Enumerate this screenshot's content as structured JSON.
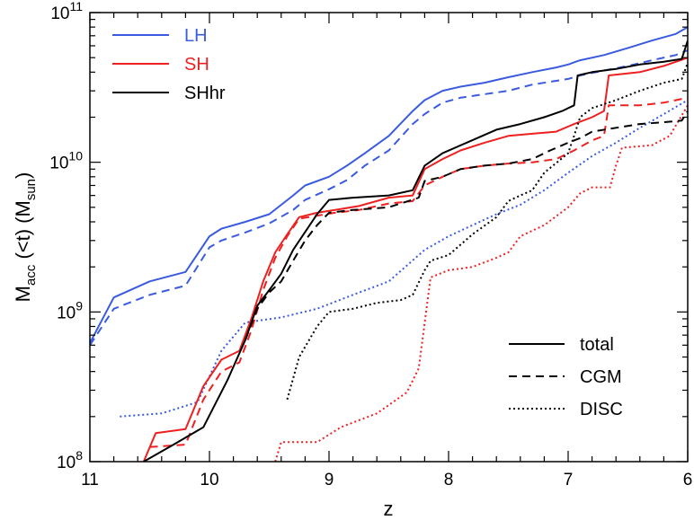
{
  "chart_data": {
    "type": "line",
    "xlabel": "z",
    "ylabel": {
      "main": "M",
      "sub1": "acc",
      "mid": " (<t) (M",
      "sub2": "sun",
      "end": ")"
    },
    "xlim": [
      11,
      6
    ],
    "ylim": [
      100000000,
      100000000000
    ],
    "yscale": "log",
    "x_ticks": [
      11,
      10,
      9,
      8,
      7,
      6
    ],
    "y_ticks": [
      {
        "base": "10",
        "exp": "8",
        "value": 100000000
      },
      {
        "base": "10",
        "exp": "9",
        "value": 1000000000
      },
      {
        "base": "10",
        "exp": "10",
        "value": 10000000000
      },
      {
        "base": "10",
        "exp": "11",
        "value": 100000000000
      }
    ],
    "colors": {
      "LH": "#3a5be0",
      "SH": "#ee2020",
      "SHhr": "#000000"
    },
    "legend_sims": [
      {
        "label": "LH",
        "color": "#3a5be0"
      },
      {
        "label": "SH",
        "color": "#ee2020"
      },
      {
        "label": "SHhr",
        "color": "#000000"
      }
    ],
    "legend_components": [
      {
        "label": "total",
        "style": "solid"
      },
      {
        "label": "CGM",
        "style": "dashed"
      },
      {
        "label": "DISC",
        "style": "dotted"
      }
    ],
    "series": [
      {
        "name": "LH total",
        "sim": "LH",
        "component": "total",
        "x": [
          11,
          10.8,
          10.5,
          10.2,
          10,
          9.9,
          9.7,
          9.5,
          9.3,
          9.2,
          9.0,
          8.85,
          8.7,
          8.5,
          8.3,
          8.2,
          8.05,
          7.9,
          7.7,
          7.5,
          7.3,
          7.1,
          7.0,
          6.9,
          6.7,
          6.5,
          6.3,
          6.1,
          6.0
        ],
        "y": [
          620000000.0,
          1250000000.0,
          1600000000.0,
          1850000000.0,
          3200000000.0,
          3600000000.0,
          4000000000.0,
          4500000000.0,
          6000000000.0,
          7000000000.0,
          8000000000.0,
          9500000000.0,
          11500000000.0,
          15000000000.0,
          22000000000.0,
          26000000000.0,
          30000000000.0,
          32000000000.0,
          34000000000.0,
          37000000000.0,
          40000000000.0,
          43000000000.0,
          45000000000.0,
          48000000000.0,
          52000000000.0,
          58000000000.0,
          65000000000.0,
          72000000000.0,
          80000000000.0
        ]
      },
      {
        "name": "LH CGM",
        "sim": "LH",
        "component": "CGM",
        "x": [
          11,
          10.8,
          10.5,
          10.2,
          10,
          9.9,
          9.7,
          9.5,
          9.3,
          9.2,
          9.0,
          8.85,
          8.7,
          8.5,
          8.3,
          8.2,
          8.05,
          7.9,
          7.7,
          7.5,
          7.3,
          7.1,
          7.0,
          6.9,
          6.7,
          6.5,
          6.3,
          6.1,
          6.0
        ],
        "y": [
          600000000.0,
          1050000000.0,
          1300000000.0,
          1500000000.0,
          2700000000.0,
          3000000000.0,
          3400000000.0,
          3900000000.0,
          4800000000.0,
          5600000000.0,
          6600000000.0,
          7600000000.0,
          9500000000.0,
          12000000000.0,
          18000000000.0,
          21000000000.0,
          25000000000.0,
          27000000000.0,
          28500000000.0,
          30000000000.0,
          33000000000.0,
          35000000000.0,
          36000000000.0,
          38000000000.0,
          41000000000.0,
          44000000000.0,
          48000000000.0,
          52000000000.0,
          56000000000.0
        ]
      },
      {
        "name": "LH DISC",
        "sim": "LH",
        "component": "DISC",
        "x": [
          10.75,
          10.4,
          10.1,
          9.9,
          9.7,
          9.4,
          9.1,
          8.8,
          8.5,
          8.2,
          8.0,
          7.8,
          7.6,
          7.4,
          7.2,
          7.0,
          6.8,
          6.6,
          6.4,
          6.2,
          6.0
        ],
        "y": [
          200000000.0,
          210000000.0,
          250000000.0,
          550000000.0,
          850000000.0,
          920000000.0,
          1050000000.0,
          1300000000.0,
          1600000000.0,
          2600000000.0,
          3200000000.0,
          3800000000.0,
          4500000000.0,
          5200000000.0,
          6500000000.0,
          8500000000.0,
          11000000000.0,
          13500000000.0,
          17000000000.0,
          21000000000.0,
          26000000000.0
        ]
      },
      {
        "name": "SH total",
        "sim": "SH",
        "component": "total",
        "x": [
          10.55,
          10.45,
          10.2,
          10.05,
          9.9,
          9.75,
          9.65,
          9.55,
          9.45,
          9.35,
          9.25,
          9.1,
          8.95,
          8.75,
          8.5,
          8.3,
          8.2,
          8.05,
          7.9,
          7.7,
          7.5,
          7.3,
          7.1,
          6.95,
          6.8,
          6.7,
          6.66,
          6.4,
          6.2,
          6.0
        ],
        "y": [
          100000000.0,
          155000000.0,
          165000000.0,
          320000000.0,
          480000000.0,
          550000000.0,
          900000000.0,
          1600000000.0,
          2500000000.0,
          3300000000.0,
          4300000000.0,
          4600000000.0,
          4800000000.0,
          5100000000.0,
          5800000000.0,
          6000000000.0,
          9000000000.0,
          10500000000.0,
          12000000000.0,
          13500000000.0,
          15000000000.0,
          15500000000.0,
          16000000000.0,
          18000000000.0,
          20000000000.0,
          22000000000.0,
          38000000000.0,
          40000000000.0,
          44000000000.0,
          50000000000.0
        ]
      },
      {
        "name": "SH CGM",
        "sim": "SH",
        "component": "CGM",
        "x": [
          10.5,
          10.2,
          10.05,
          9.9,
          9.75,
          9.65,
          9.55,
          9.45,
          9.35,
          9.25,
          9.1,
          8.95,
          8.75,
          8.5,
          8.3,
          8.2,
          8.05,
          7.9,
          7.7,
          7.5,
          7.3,
          7.1,
          6.95,
          6.8,
          6.7,
          6.66,
          6.4,
          6.2,
          6.0
        ],
        "y": [
          125000000.0,
          130000000.0,
          260000000.0,
          400000000.0,
          460000000.0,
          750000000.0,
          1400000000.0,
          2300000000.0,
          3200000000.0,
          4200000000.0,
          4400000000.0,
          4600000000.0,
          4800000000.0,
          5300000000.0,
          5500000000.0,
          7000000000.0,
          8000000000.0,
          9000000000.0,
          9500000000.0,
          9800000000.0,
          10000000000.0,
          10500000000.0,
          12000000000.0,
          14000000000.0,
          15000000000.0,
          24000000000.0,
          24000000000.0,
          25000000000.0,
          27000000000.0
        ]
      },
      {
        "name": "SH DISC",
        "sim": "SH",
        "component": "DISC",
        "x": [
          9.45,
          9.4,
          9.1,
          8.9,
          8.6,
          8.35,
          8.25,
          8.15,
          8.0,
          7.8,
          7.6,
          7.5,
          7.4,
          7.2,
          7.0,
          6.9,
          6.8,
          6.65,
          6.6,
          6.55,
          6.3,
          6.15,
          6.0
        ],
        "y": [
          100000000.0,
          135000000.0,
          135000000.0,
          170000000.0,
          210000000.0,
          290000000.0,
          420000000.0,
          1700000000.0,
          1900000000.0,
          2000000000.0,
          2300000000.0,
          2500000000.0,
          3200000000.0,
          3800000000.0,
          5000000000.0,
          6200000000.0,
          6800000000.0,
          6800000000.0,
          9500000000.0,
          12500000000.0,
          13000000000.0,
          15000000000.0,
          24000000000.0
        ]
      },
      {
        "name": "SHhr total",
        "sim": "SHhr",
        "component": "total",
        "x": [
          10.55,
          10.3,
          10.05,
          9.85,
          9.7,
          9.6,
          9.5,
          9.4,
          9.3,
          9.1,
          9.0,
          8.8,
          8.5,
          8.3,
          8.2,
          8.05,
          7.85,
          7.6,
          7.4,
          7.2,
          7.05,
          6.95,
          6.92,
          6.8,
          6.6,
          6.4,
          6.2,
          6.05,
          6.0
        ],
        "y": [
          100000000.0,
          130000000.0,
          170000000.0,
          350000000.0,
          650000000.0,
          1100000000.0,
          1400000000.0,
          1800000000.0,
          2600000000.0,
          4500000000.0,
          5600000000.0,
          5800000000.0,
          6000000000.0,
          6500000000.0,
          9500000000.0,
          11500000000.0,
          13500000000.0,
          16500000000.0,
          18000000000.0,
          20000000000.0,
          22000000000.0,
          24000000000.0,
          38000000000.0,
          40000000000.0,
          42000000000.0,
          45000000000.0,
          47000000000.0,
          49000000000.0,
          65000000000.0
        ]
      },
      {
        "name": "SHhr CGM",
        "sim": "SHhr",
        "component": "CGM",
        "x": [
          9.7,
          9.6,
          9.5,
          9.4,
          9.3,
          9.2,
          9.1,
          9.0,
          8.8,
          8.5,
          8.25,
          8.2,
          8.05,
          7.9,
          7.7,
          7.5,
          7.3,
          7.15,
          7.0,
          6.9,
          6.8,
          6.6,
          6.4,
          6.2,
          6.05,
          6.0
        ],
        "y": [
          650000000.0,
          1050000000.0,
          1350000000.0,
          1600000000.0,
          2200000000.0,
          3000000000.0,
          3800000000.0,
          4600000000.0,
          4800000000.0,
          5000000000.0,
          5800000000.0,
          7500000000.0,
          8000000000.0,
          9000000000.0,
          9500000000.0,
          9800000000.0,
          10500000000.0,
          12000000000.0,
          13500000000.0,
          14500000000.0,
          16000000000.0,
          17000000000.0,
          18000000000.0,
          18500000000.0,
          19000000000.0,
          22000000000.0
        ]
      },
      {
        "name": "SHhr DISC",
        "sim": "SHhr",
        "component": "DISC",
        "x": [
          9.35,
          9.25,
          9.1,
          9.0,
          8.8,
          8.6,
          8.4,
          8.3,
          8.2,
          8.15,
          8.0,
          7.8,
          7.6,
          7.5,
          7.4,
          7.3,
          7.2,
          7.0,
          6.95,
          6.9,
          6.8,
          6.6,
          6.4,
          6.2,
          6.05,
          6.0
        ],
        "y": [
          260000000.0,
          500000000.0,
          800000000.0,
          1000000000.0,
          1050000000.0,
          1150000000.0,
          1200000000.0,
          1300000000.0,
          1900000000.0,
          2200000000.0,
          2400000000.0,
          3300000000.0,
          4300000000.0,
          5500000000.0,
          6000000000.0,
          6500000000.0,
          8500000000.0,
          11500000000.0,
          15000000000.0,
          20000000000.0,
          23000000000.0,
          26000000000.0,
          30000000000.0,
          34000000000.0,
          36000000000.0,
          46000000000.0
        ]
      }
    ]
  }
}
